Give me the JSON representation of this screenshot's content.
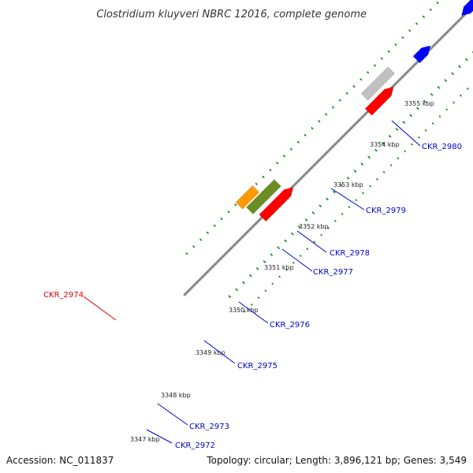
{
  "title": "Clostridium kluyveri NBRC 12016, complete genome",
  "footer": {
    "accession": "Accession: NC_011837",
    "summary": "Topology: circular; Length: 3,896,121 bp; Genes: 3,549"
  },
  "colors": {
    "backbone": "#8c8c8c",
    "tick": "#228b22",
    "label_default": "#0000cc",
    "label_highlight": "#dd0000",
    "cds_blue": "#0000ff",
    "red": "#ff0000",
    "orange": "#ff9900",
    "steelblue": "#4682b4",
    "darkslate": "#483d8b",
    "green": "#44dd44",
    "gray": "#c0c0c0",
    "olive": "#6b8e23",
    "khaki": "#c8c48c",
    "pink": "#ffc0cb"
  },
  "scale": {
    "ticks": [
      "3347 kbp",
      "3348 kbp",
      "3349 kbp",
      "3350 kbp",
      "3351 kbp",
      "3352 kbp",
      "3353 kbp",
      "3354 kbp",
      "3355 kbp"
    ]
  },
  "gene_labels": [
    "CKR_2980",
    "CKR_2979",
    "CKR_2978",
    "CKR_2977",
    "CKR_2976",
    "CKR_2975",
    "CKR_2974",
    "CKR_2973",
    "CKR_2972"
  ]
}
